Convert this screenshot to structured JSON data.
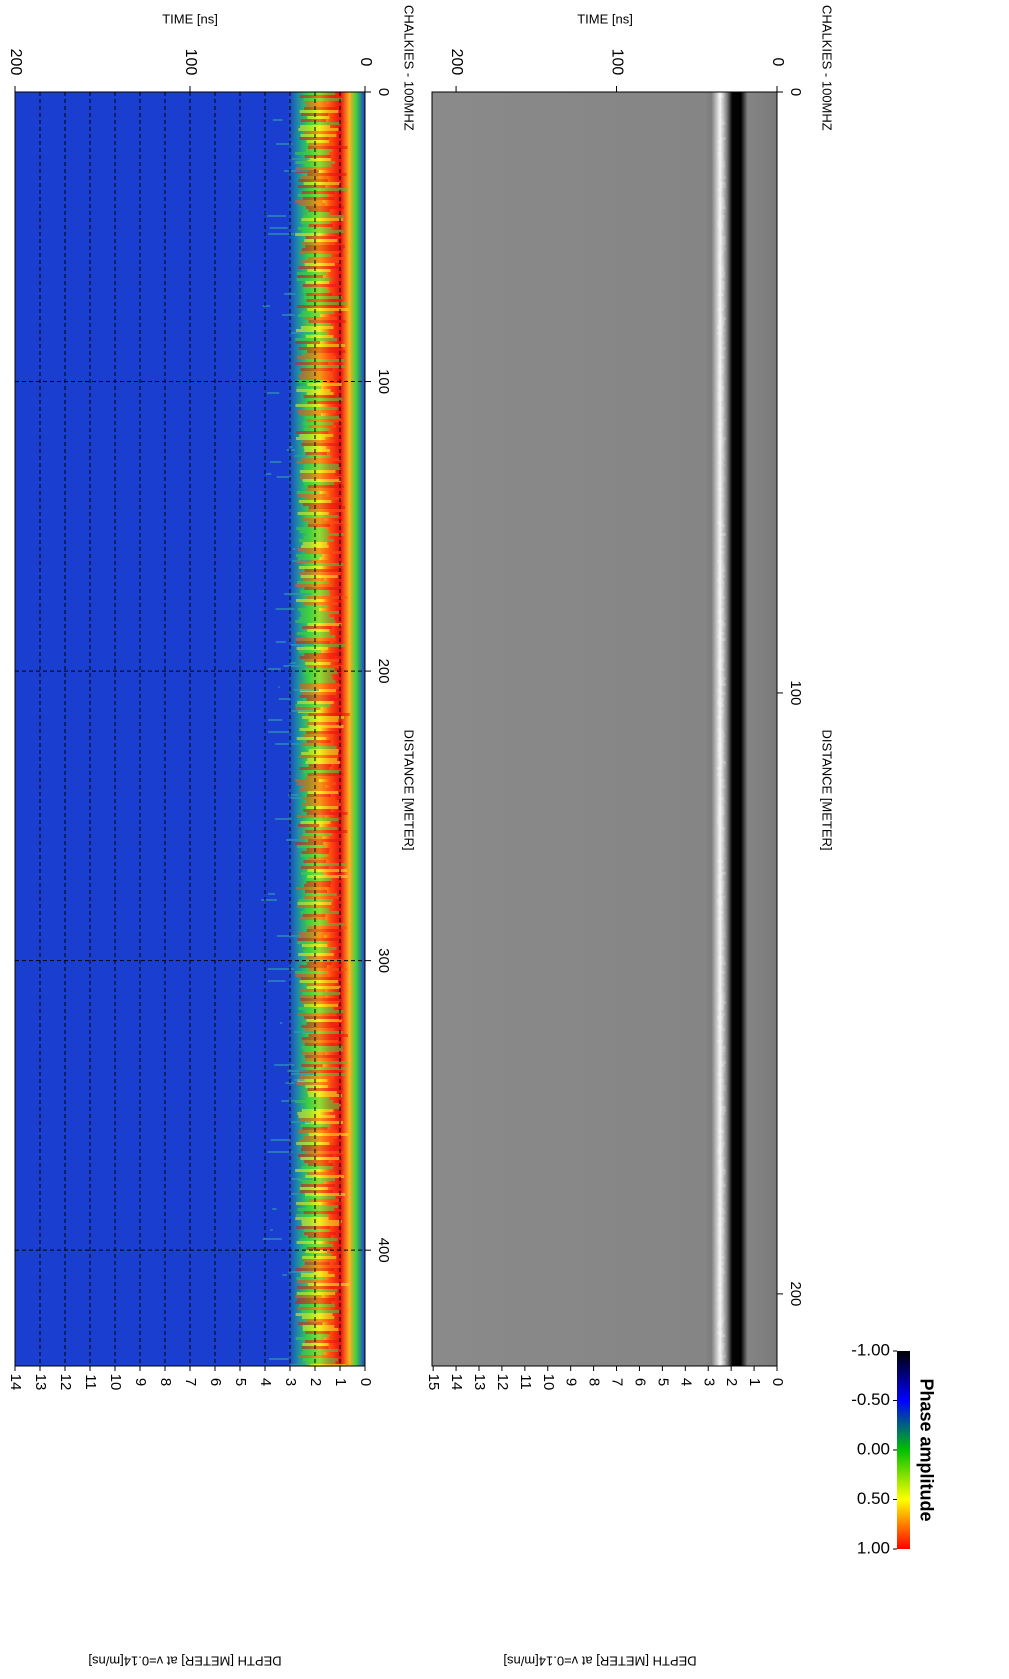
{
  "chart_data": [
    {
      "type": "heatmap",
      "title": "CHALKIES - 100MHZ",
      "xlabel": "DISTANCE [METER]",
      "ylabel": "TIME [ns]",
      "y2label": "DEPTH [METER] at v=0.14[m/ns]",
      "colormap": "jet",
      "grid": true,
      "xlim": [
        0,
        440
      ],
      "xticks": [
        0,
        100,
        200,
        300,
        400
      ],
      "ylim": [
        0,
        200
      ],
      "yticks": [
        0,
        100,
        200
      ],
      "y2lim": [
        0,
        14
      ],
      "y2ticks": [
        0,
        1,
        2,
        3,
        4,
        5,
        6,
        7,
        8,
        9,
        10,
        11,
        12,
        13,
        14
      ]
    },
    {
      "type": "heatmap",
      "title": "CHALKIES - 100MHZ",
      "xlabel": "DISTANCE [METER]",
      "ylabel": "TIME [ns]",
      "y2label": "DEPTH [METER] at v=0.14[m/ns]",
      "colormap": "gray",
      "grid": false,
      "xlim": [
        0,
        212
      ],
      "xticks": [
        0,
        100,
        200
      ],
      "ylim": [
        0,
        215
      ],
      "yticks": [
        0,
        100,
        200
      ],
      "y2lim": [
        0,
        15.05
      ],
      "y2ticks": [
        0,
        1,
        2,
        3,
        4,
        5,
        6,
        7,
        8,
        9,
        10,
        11,
        12,
        13,
        14,
        15
      ]
    }
  ],
  "colorbar": {
    "label": "Phase amplitude",
    "lim": [
      -1,
      1
    ],
    "ticks": [
      {
        "value": -1,
        "label": "-1.00"
      },
      {
        "value": -0.5,
        "label": "-0.50"
      },
      {
        "value": 0,
        "label": "0.00"
      },
      {
        "value": 0.5,
        "label": "0.50"
      },
      {
        "value": 1,
        "label": "1.00"
      }
    ],
    "colors": [
      "#000000",
      "#0000ff",
      "#00c000",
      "#ffff00",
      "#ff0000"
    ]
  }
}
